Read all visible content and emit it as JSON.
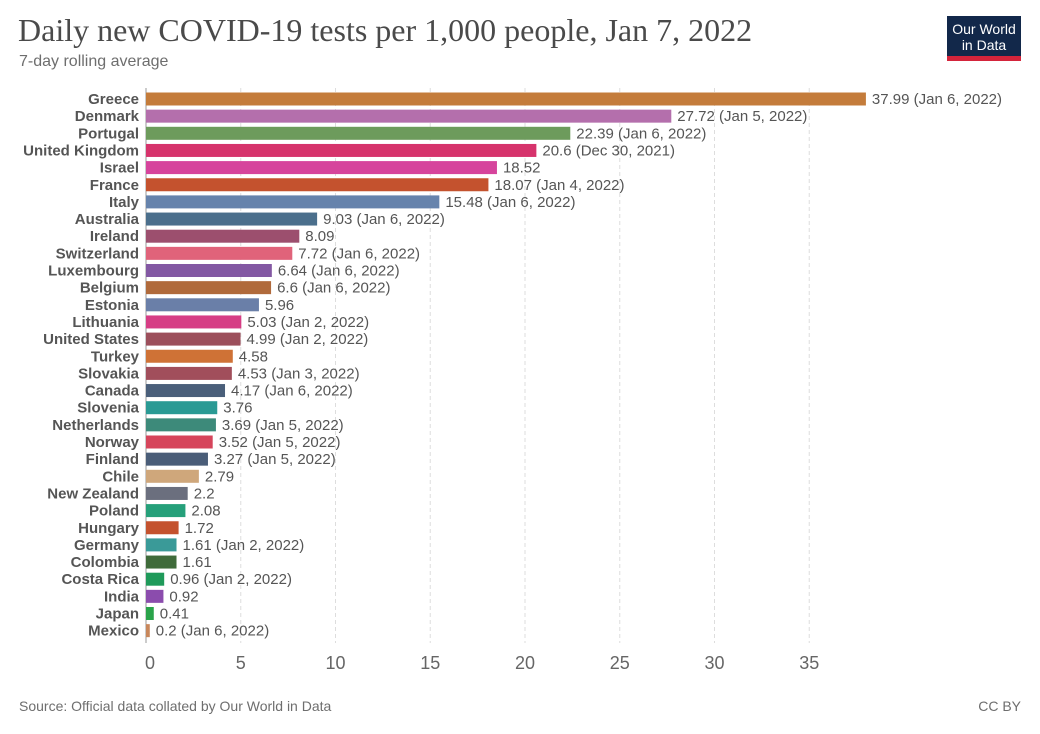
{
  "header": {
    "title": "Daily new COVID-19 tests per 1,000 people, Jan 7, 2022",
    "subtitle": "7-day rolling average"
  },
  "logo": {
    "line1": "Our World",
    "line2": "in Data",
    "background": "#12284a",
    "accent": "#d4243b"
  },
  "footer": {
    "source": "Source: Official data collated by Our World in Data",
    "license": "CC BY"
  },
  "chart_data": {
    "type": "bar",
    "orientation": "horizontal",
    "title": "Daily new COVID-19 tests per 1,000 people, Jan 7, 2022",
    "subtitle": "7-day rolling average",
    "xlim": [
      0,
      38
    ],
    "xticks": [
      0,
      5,
      10,
      15,
      20,
      25,
      30,
      35
    ],
    "grid": "vertical dashed",
    "categories": [
      "Greece",
      "Denmark",
      "Portugal",
      "United Kingdom",
      "Israel",
      "France",
      "Italy",
      "Australia",
      "Ireland",
      "Switzerland",
      "Luxembourg",
      "Belgium",
      "Estonia",
      "Lithuania",
      "United States",
      "Turkey",
      "Slovakia",
      "Canada",
      "Slovenia",
      "Netherlands",
      "Norway",
      "Finland",
      "Chile",
      "New Zealand",
      "Poland",
      "Hungary",
      "Germany",
      "Colombia",
      "Costa Rica",
      "India",
      "Japan",
      "Mexico"
    ],
    "values": [
      37.99,
      27.72,
      22.39,
      20.6,
      18.52,
      18.07,
      15.48,
      9.03,
      8.09,
      7.72,
      6.64,
      6.6,
      5.96,
      5.03,
      4.99,
      4.58,
      4.53,
      4.17,
      3.76,
      3.69,
      3.52,
      3.27,
      2.79,
      2.2,
      2.08,
      1.72,
      1.61,
      1.61,
      0.96,
      0.92,
      0.41,
      0.2
    ],
    "labels": [
      "37.99 (Jan 6, 2022)",
      "27.72 (Jan 5, 2022)",
      "22.39 (Jan 6, 2022)",
      "20.6 (Dec 30, 2021)",
      "18.52",
      "18.07 (Jan 4, 2022)",
      "15.48 (Jan 6, 2022)",
      "9.03 (Jan 6, 2022)",
      "8.09",
      "7.72 (Jan 6, 2022)",
      "6.64 (Jan 6, 2022)",
      "6.6 (Jan 6, 2022)",
      "5.96",
      "5.03 (Jan 2, 2022)",
      "4.99 (Jan 2, 2022)",
      "4.58",
      "4.53 (Jan 3, 2022)",
      "4.17 (Jan 6, 2022)",
      "3.76",
      "3.69 (Jan 5, 2022)",
      "3.52 (Jan 5, 2022)",
      "3.27 (Jan 5, 2022)",
      "2.79",
      "2.2",
      "2.08",
      "1.72",
      "1.61 (Jan 2, 2022)",
      "1.61",
      "0.96 (Jan 2, 2022)",
      "0.92",
      "0.41",
      "0.2 (Jan 6, 2022)"
    ],
    "colors": [
      "#c47c3b",
      "#b46fac",
      "#6d9b5c",
      "#d6336c",
      "#d6449c",
      "#c4522e",
      "#6683ac",
      "#4b6f8c",
      "#9c4f6e",
      "#e0637a",
      "#8358a3",
      "#b06a3b",
      "#6a7fa8",
      "#d63d85",
      "#9c4f5b",
      "#cf7236",
      "#a14e5b",
      "#4a5f7a",
      "#2a9a94",
      "#3d8a7a",
      "#d6455b",
      "#4a5d78",
      "#cfa77b",
      "#6b6f7e",
      "#26a07a",
      "#c4522e",
      "#3a9a98",
      "#3f6b3a",
      "#1f9a5a",
      "#8b4cad",
      "#2aa34a",
      "#c8875b"
    ]
  }
}
